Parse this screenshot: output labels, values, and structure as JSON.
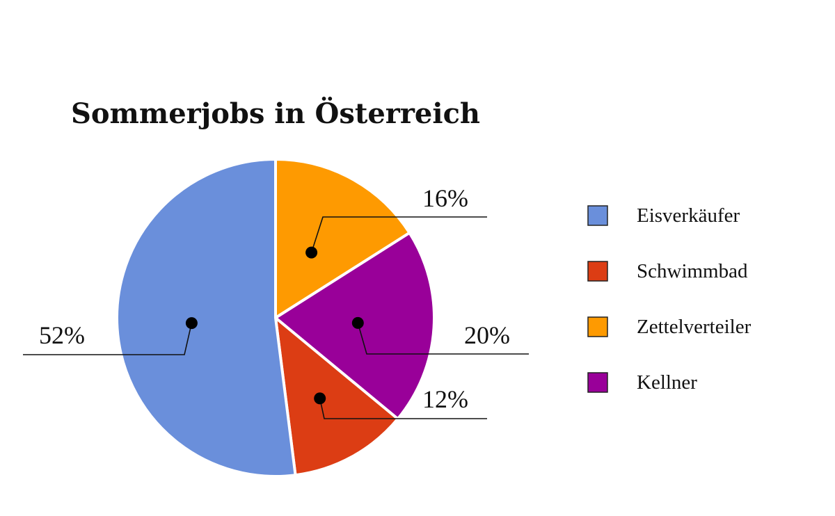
{
  "chart_data": {
    "type": "pie",
    "title": "Sommerjobs in Österreich",
    "slices": [
      {
        "label": "Eisverkäufer",
        "value": 52,
        "value_label": "52%",
        "color": "#6a8fdb"
      },
      {
        "label": "Schwimmbad",
        "value": 12,
        "value_label": "12%",
        "color": "#dc3d14"
      },
      {
        "label": "Zettelverteiler",
        "value": 16,
        "value_label": "16%",
        "color": "#fe9a01"
      },
      {
        "label": "Kellner",
        "value": 20,
        "value_label": "20%",
        "color": "#990099"
      }
    ],
    "draw_order": [
      "Zettelverteiler",
      "Kellner",
      "Schwimmbad",
      "Eisverkäufer"
    ],
    "start_angle_deg": 0,
    "direction": "clockwise",
    "legend_placement": "right"
  }
}
